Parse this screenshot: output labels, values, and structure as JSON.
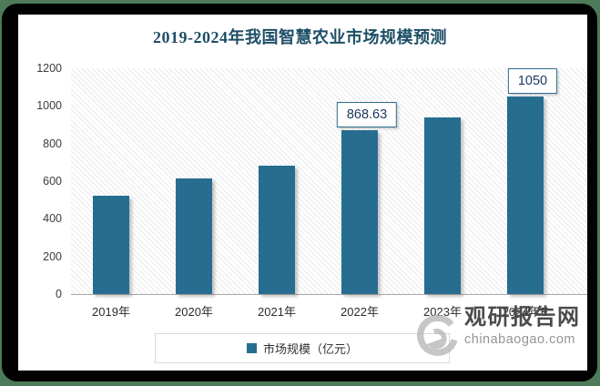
{
  "frame": {
    "outer_background": "#4d7a58",
    "frame_color": "#010101",
    "canvas_background": "#ffffff"
  },
  "title": {
    "text": "2019-2024年我国智慧农业市场规模预测",
    "color": "#1d4e66"
  },
  "chart_data": {
    "type": "bar",
    "title": "2019-2024年我国智慧农业市场规模预测",
    "categories": [
      "2019年",
      "2020年",
      "2021年",
      "2022年",
      "2023年",
      "2024年E"
    ],
    "series": [
      {
        "name": "市场规模（亿元）",
        "values": [
          522,
          615,
          681,
          868.63,
          937,
          1050
        ]
      }
    ],
    "shown_data_labels": {
      "3": "868.63",
      "5": "1050"
    },
    "ylim": [
      0,
      1200
    ],
    "yticks": [
      0,
      200,
      400,
      600,
      800,
      1000,
      1200
    ],
    "xlabel": "",
    "ylabel": "",
    "grid": false,
    "plot_background": "diagonal-hatch",
    "legend_position": "bottom",
    "bar_color": "#266d8f"
  },
  "legend": {
    "swatch_color": "#266d8f",
    "label": "市场规模（亿元）"
  },
  "watermark": {
    "site_name": "观研报告网",
    "site_url": "chinabaogao.com"
  }
}
